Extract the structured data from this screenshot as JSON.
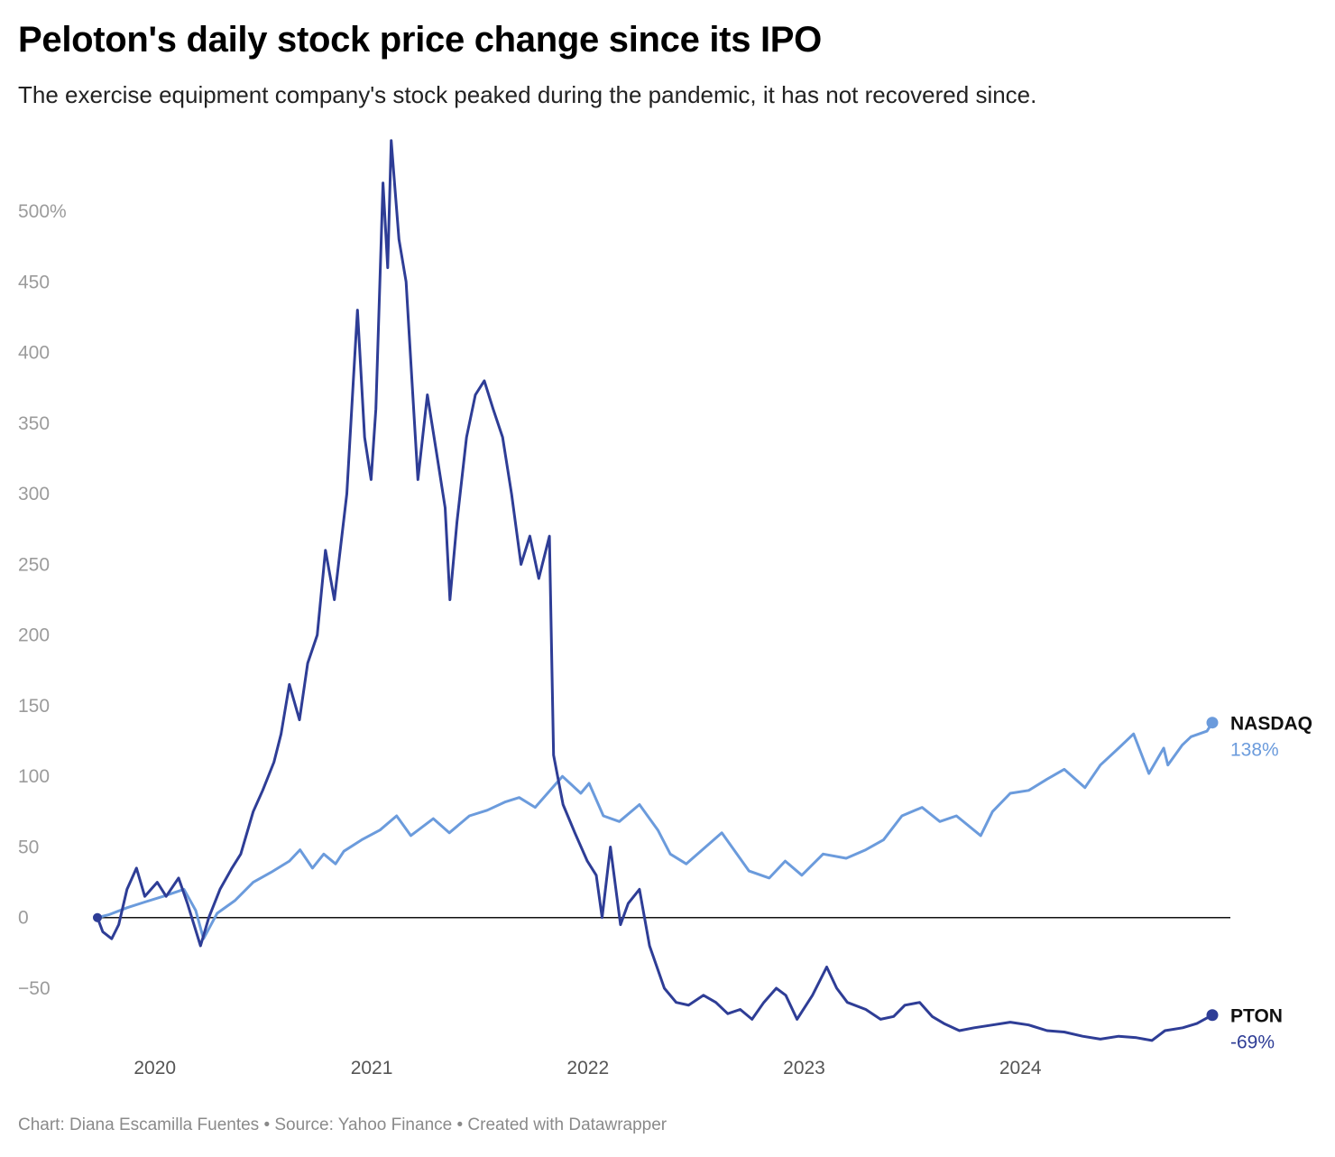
{
  "header": {
    "title": "Peloton's daily stock price change since its IPO",
    "subtitle": "The exercise equipment company's stock peaked during the pandemic, it has not recovered since."
  },
  "footer": {
    "credit": "Chart: Diana Escamilla Fuentes • Source: Yahoo Finance • Created with Datawrapper"
  },
  "chart_data": {
    "type": "line",
    "title": "Peloton's daily stock price change since its IPO",
    "subtitle": "The exercise equipment company's stock peaked during the pandemic, it has not recovered since.",
    "xlabel": "",
    "ylabel": "",
    "x_range": [
      "2019-09-26",
      "2024-11-20"
    ],
    "ylim": [
      -85,
      550
    ],
    "y_ticks": [
      -50,
      0,
      50,
      100,
      150,
      200,
      250,
      300,
      350,
      400,
      450,
      500
    ],
    "y_tick_labels": [
      "−50",
      "0",
      "50",
      "100",
      "150",
      "200",
      "250",
      "300",
      "350",
      "400",
      "450",
      "500%"
    ],
    "x_ticks": [
      "2020-01-01",
      "2021-01-01",
      "2022-01-01",
      "2023-01-01",
      "2024-01-01"
    ],
    "x_tick_labels": [
      "2020",
      "2021",
      "2022",
      "2023",
      "2024"
    ],
    "zero_line": true,
    "grid": false,
    "legend": "direct labels at line ends (right)",
    "series": [
      {
        "name": "NASDAQ",
        "end_label": "138%",
        "color": "#6b9bdc",
        "points": [
          [
            "2019-09-26",
            0
          ],
          [
            "2019-10-15",
            2
          ],
          [
            "2019-11-15",
            7
          ],
          [
            "2019-12-15",
            11
          ],
          [
            "2020-01-15",
            15
          ],
          [
            "2020-02-19",
            20
          ],
          [
            "2020-03-10",
            5
          ],
          [
            "2020-03-23",
            -15
          ],
          [
            "2020-04-15",
            3
          ],
          [
            "2020-05-15",
            12
          ],
          [
            "2020-06-15",
            25
          ],
          [
            "2020-07-15",
            32
          ],
          [
            "2020-08-15",
            40
          ],
          [
            "2020-09-02",
            48
          ],
          [
            "2020-09-23",
            35
          ],
          [
            "2020-10-12",
            45
          ],
          [
            "2020-11-01",
            38
          ],
          [
            "2020-11-15",
            47
          ],
          [
            "2020-12-15",
            55
          ],
          [
            "2021-01-15",
            62
          ],
          [
            "2021-02-12",
            72
          ],
          [
            "2021-03-08",
            58
          ],
          [
            "2021-04-15",
            70
          ],
          [
            "2021-05-12",
            60
          ],
          [
            "2021-06-15",
            72
          ],
          [
            "2021-07-15",
            76
          ],
          [
            "2021-08-15",
            82
          ],
          [
            "2021-09-07",
            85
          ],
          [
            "2021-10-04",
            78
          ],
          [
            "2021-11-19",
            100
          ],
          [
            "2021-12-20",
            88
          ],
          [
            "2022-01-03",
            95
          ],
          [
            "2022-01-27",
            72
          ],
          [
            "2022-02-23",
            68
          ],
          [
            "2022-03-29",
            80
          ],
          [
            "2022-04-29",
            62
          ],
          [
            "2022-05-20",
            45
          ],
          [
            "2022-06-16",
            38
          ],
          [
            "2022-08-15",
            60
          ],
          [
            "2022-09-30",
            33
          ],
          [
            "2022-11-03",
            28
          ],
          [
            "2022-11-30",
            40
          ],
          [
            "2022-12-28",
            30
          ],
          [
            "2023-02-02",
            45
          ],
          [
            "2023-03-13",
            42
          ],
          [
            "2023-04-15",
            48
          ],
          [
            "2023-05-15",
            55
          ],
          [
            "2023-06-15",
            72
          ],
          [
            "2023-07-19",
            78
          ],
          [
            "2023-08-18",
            68
          ],
          [
            "2023-09-15",
            72
          ],
          [
            "2023-10-26",
            58
          ],
          [
            "2023-11-15",
            75
          ],
          [
            "2023-12-15",
            88
          ],
          [
            "2024-01-15",
            90
          ],
          [
            "2024-02-15",
            98
          ],
          [
            "2024-03-15",
            105
          ],
          [
            "2024-04-19",
            92
          ],
          [
            "2024-05-15",
            108
          ],
          [
            "2024-06-15",
            120
          ],
          [
            "2024-07-10",
            130
          ],
          [
            "2024-08-05",
            102
          ],
          [
            "2024-08-30",
            120
          ],
          [
            "2024-09-06",
            108
          ],
          [
            "2024-09-30",
            122
          ],
          [
            "2024-10-15",
            128
          ],
          [
            "2024-11-11",
            132
          ],
          [
            "2024-11-20",
            138
          ]
        ]
      },
      {
        "name": "PTON",
        "end_label": "-69%",
        "color": "#2e3d96",
        "points": [
          [
            "2019-09-26",
            0
          ],
          [
            "2019-10-05",
            -10
          ],
          [
            "2019-10-20",
            -15
          ],
          [
            "2019-11-01",
            -5
          ],
          [
            "2019-11-15",
            20
          ],
          [
            "2019-12-01",
            35
          ],
          [
            "2019-12-15",
            15
          ],
          [
            "2020-01-05",
            25
          ],
          [
            "2020-01-20",
            15
          ],
          [
            "2020-02-10",
            28
          ],
          [
            "2020-02-25",
            10
          ],
          [
            "2020-03-18",
            -20
          ],
          [
            "2020-04-01",
            0
          ],
          [
            "2020-04-20",
            20
          ],
          [
            "2020-05-10",
            35
          ],
          [
            "2020-05-25",
            45
          ],
          [
            "2020-06-15",
            75
          ],
          [
            "2020-07-01",
            90
          ],
          [
            "2020-07-20",
            110
          ],
          [
            "2020-08-01",
            130
          ],
          [
            "2020-08-15",
            165
          ],
          [
            "2020-09-01",
            140
          ],
          [
            "2020-09-15",
            180
          ],
          [
            "2020-10-01",
            200
          ],
          [
            "2020-10-15",
            260
          ],
          [
            "2020-10-30",
            225
          ],
          [
            "2020-11-20",
            300
          ],
          [
            "2020-12-01",
            380
          ],
          [
            "2020-12-08",
            430
          ],
          [
            "2020-12-20",
            340
          ],
          [
            "2020-12-31",
            310
          ],
          [
            "2021-01-08",
            360
          ],
          [
            "2021-01-20",
            520
          ],
          [
            "2021-01-28",
            460
          ],
          [
            "2021-02-03",
            550
          ],
          [
            "2021-02-16",
            480
          ],
          [
            "2021-02-28",
            450
          ],
          [
            "2021-03-10",
            380
          ],
          [
            "2021-03-20",
            310
          ],
          [
            "2021-04-05",
            370
          ],
          [
            "2021-04-20",
            330
          ],
          [
            "2021-05-05",
            290
          ],
          [
            "2021-05-13",
            225
          ],
          [
            "2021-05-25",
            280
          ],
          [
            "2021-06-10",
            340
          ],
          [
            "2021-06-25",
            370
          ],
          [
            "2021-07-10",
            380
          ],
          [
            "2021-07-25",
            360
          ],
          [
            "2021-08-10",
            340
          ],
          [
            "2021-08-25",
            300
          ],
          [
            "2021-09-10",
            250
          ],
          [
            "2021-09-25",
            270
          ],
          [
            "2021-10-10",
            240
          ],
          [
            "2021-10-28",
            270
          ],
          [
            "2021-11-04",
            115
          ],
          [
            "2021-11-20",
            80
          ],
          [
            "2021-12-10",
            60
          ],
          [
            "2021-12-31",
            40
          ],
          [
            "2022-01-15",
            30
          ],
          [
            "2022-01-25",
            0
          ],
          [
            "2022-02-08",
            50
          ],
          [
            "2022-02-25",
            -5
          ],
          [
            "2022-03-10",
            10
          ],
          [
            "2022-03-29",
            20
          ],
          [
            "2022-04-15",
            -20
          ],
          [
            "2022-05-10",
            -50
          ],
          [
            "2022-05-30",
            -60
          ],
          [
            "2022-06-20",
            -62
          ],
          [
            "2022-07-15",
            -55
          ],
          [
            "2022-08-05",
            -60
          ],
          [
            "2022-08-25",
            -68
          ],
          [
            "2022-09-15",
            -65
          ],
          [
            "2022-10-05",
            -72
          ],
          [
            "2022-10-25",
            -60
          ],
          [
            "2022-11-15",
            -50
          ],
          [
            "2022-12-01",
            -55
          ],
          [
            "2022-12-20",
            -72
          ],
          [
            "2023-01-15",
            -55
          ],
          [
            "2023-02-08",
            -35
          ],
          [
            "2023-02-25",
            -50
          ],
          [
            "2023-03-15",
            -60
          ],
          [
            "2023-04-15",
            -65
          ],
          [
            "2023-05-10",
            -72
          ],
          [
            "2023-06-01",
            -70
          ],
          [
            "2023-06-20",
            -62
          ],
          [
            "2023-07-15",
            -60
          ],
          [
            "2023-08-05",
            -70
          ],
          [
            "2023-08-25",
            -75
          ],
          [
            "2023-09-20",
            -80
          ],
          [
            "2023-10-15",
            -78
          ],
          [
            "2023-11-15",
            -76
          ],
          [
            "2023-12-15",
            -74
          ],
          [
            "2024-01-15",
            -76
          ],
          [
            "2024-02-15",
            -80
          ],
          [
            "2024-03-15",
            -81
          ],
          [
            "2024-04-15",
            -84
          ],
          [
            "2024-05-15",
            -86
          ],
          [
            "2024-06-15",
            -84
          ],
          [
            "2024-07-15",
            -85
          ],
          [
            "2024-08-10",
            -87
          ],
          [
            "2024-09-01",
            -80
          ],
          [
            "2024-10-01",
            -78
          ],
          [
            "2024-10-25",
            -75
          ],
          [
            "2024-11-20",
            -69
          ]
        ]
      }
    ]
  }
}
